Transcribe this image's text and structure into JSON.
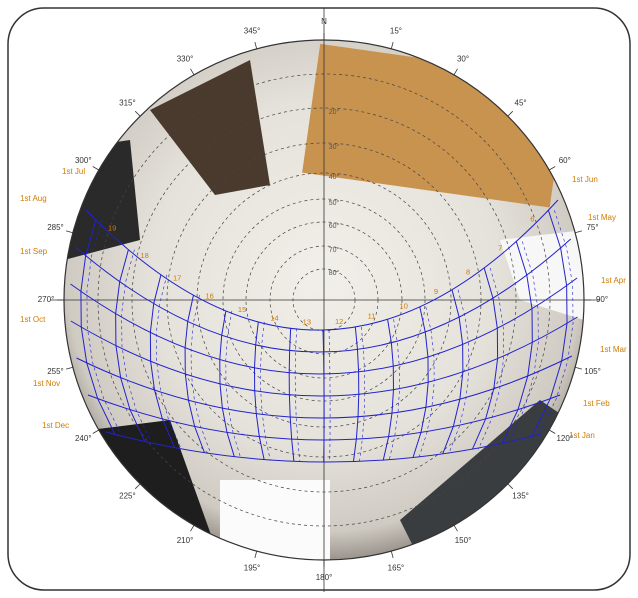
{
  "azimuth_labels": [
    "N",
    "15°",
    "30°",
    "45°",
    "60°",
    "75°",
    "90°",
    "105°",
    "120°",
    "135°",
    "150°",
    "165°",
    "180°",
    "195°",
    "210°",
    "225°",
    "240°",
    "255°",
    "270°",
    "285°",
    "300°",
    "315°",
    "330°",
    "345°"
  ],
  "altitude_labels": [
    "20°",
    "30°",
    "40°",
    "50°",
    "60°",
    "70°",
    "80°"
  ],
  "month_labels": {
    "left": [
      "1st Jul",
      "1st Aug",
      "1st Sep",
      "1st Oct",
      "1st Nov",
      "1st Dec"
    ],
    "right": [
      "1st Jun",
      "1st May",
      "1st Apr",
      "1st Mar",
      "1st Feb",
      "1st Jan"
    ]
  },
  "hour_labels": [
    "19",
    "18",
    "17",
    "16",
    "15",
    "14",
    "13",
    "12",
    "11",
    "10",
    "9",
    "8",
    "7",
    "6"
  ]
}
